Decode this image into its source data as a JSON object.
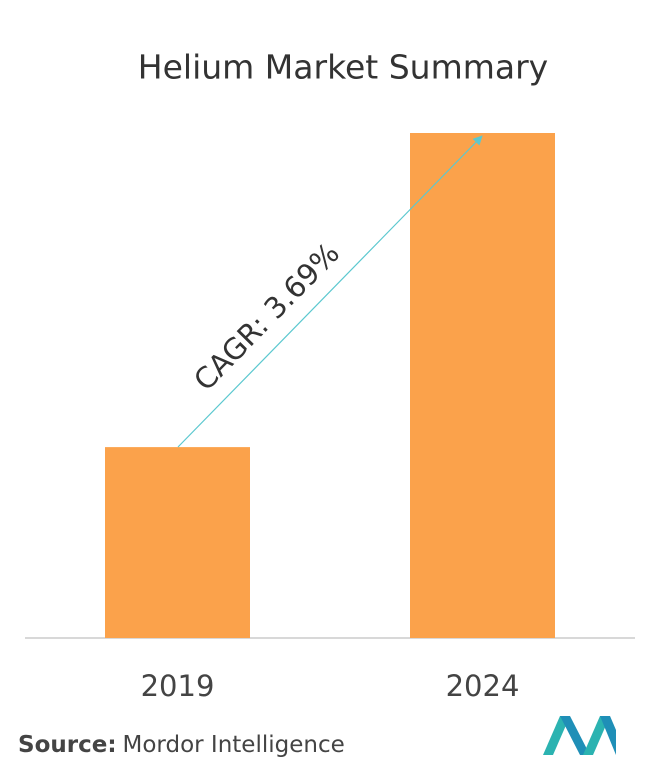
{
  "chart_data": {
    "type": "bar",
    "title": "Helium Market Summary",
    "categories": [
      "2019",
      "2024"
    ],
    "values": [
      37.8,
      100
    ],
    "color": "#fba24b",
    "annotation": "CAGR: 3.69%",
    "source_label": "Source:",
    "source": "Mordor Intelligence"
  }
}
